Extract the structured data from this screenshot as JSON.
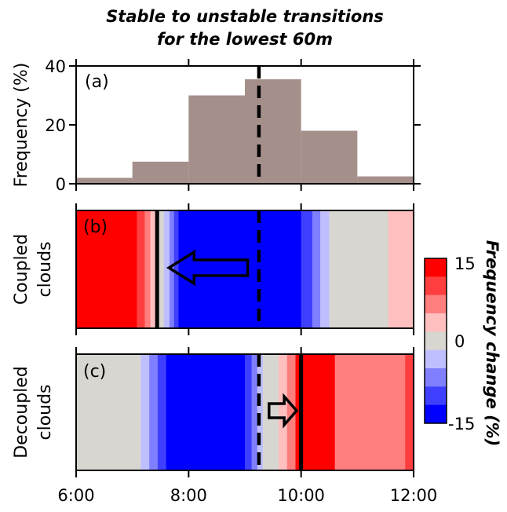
{
  "title_line1": "Stable to unstable transitions",
  "title_line2": "for the lowest 60m",
  "chart_data": [
    {
      "type": "bar",
      "panel": "(a)",
      "ylabel": "Frequency (%)",
      "ylim": [
        0,
        40
      ],
      "yticks": [
        "0",
        "20",
        "40"
      ],
      "bin_edges": [
        6.0,
        7.0,
        8.0,
        9.0,
        10.0,
        11.0,
        12.0
      ],
      "values": [
        2,
        7.5,
        30,
        35.5,
        18,
        2.5
      ],
      "bar_color": "#a48f8a",
      "dashed_line_x": 9.25
    },
    {
      "type": "heatmap",
      "panel": "(b)",
      "ylabel_line1": "Coupled",
      "ylabel_line2": "clouds",
      "segments": [
        {
          "x0": 6.0,
          "x1": 7.08,
          "v": 15
        },
        {
          "x0": 7.08,
          "x1": 7.22,
          "v": 12
        },
        {
          "x0": 7.22,
          "x1": 7.32,
          "v": 8
        },
        {
          "x0": 7.32,
          "x1": 7.43,
          "v": 4
        },
        {
          "x0": 7.43,
          "x1": 7.56,
          "v": 0
        },
        {
          "x0": 7.56,
          "x1": 7.66,
          "v": -4
        },
        {
          "x0": 7.66,
          "x1": 7.74,
          "v": -8
        },
        {
          "x0": 7.74,
          "x1": 7.82,
          "v": -12
        },
        {
          "x0": 7.82,
          "x1": 10.0,
          "v": -15
        },
        {
          "x0": 10.0,
          "x1": 10.2,
          "v": -12
        },
        {
          "x0": 10.2,
          "x1": 10.34,
          "v": -8
        },
        {
          "x0": 10.34,
          "x1": 10.5,
          "v": -4
        },
        {
          "x0": 10.5,
          "x1": 11.55,
          "v": 0
        },
        {
          "x0": 11.55,
          "x1": 12.0,
          "v": 4
        }
      ],
      "solid_line_x": 7.44,
      "dashed_line_x": 9.25,
      "arrow_direction": "left",
      "arrow_from_x": 9.05,
      "arrow_to_x": 7.65
    },
    {
      "type": "heatmap",
      "panel": "(c)",
      "ylabel_line1": "Decoupled",
      "ylabel_line2": "clouds",
      "segments": [
        {
          "x0": 6.0,
          "x1": 7.15,
          "v": 0
        },
        {
          "x0": 7.15,
          "x1": 7.3,
          "v": -4
        },
        {
          "x0": 7.3,
          "x1": 7.45,
          "v": -8
        },
        {
          "x0": 7.45,
          "x1": 7.6,
          "v": -12
        },
        {
          "x0": 7.6,
          "x1": 9.0,
          "v": -15
        },
        {
          "x0": 9.0,
          "x1": 9.12,
          "v": -12
        },
        {
          "x0": 9.12,
          "x1": 9.22,
          "v": -8
        },
        {
          "x0": 9.22,
          "x1": 9.32,
          "v": -4
        },
        {
          "x0": 9.32,
          "x1": 9.6,
          "v": 0
        },
        {
          "x0": 9.6,
          "x1": 9.75,
          "v": 4
        },
        {
          "x0": 9.75,
          "x1": 9.9,
          "v": 8
        },
        {
          "x0": 9.9,
          "x1": 10.6,
          "v": 15
        },
        {
          "x0": 10.6,
          "x1": 11.85,
          "v": 8
        },
        {
          "x0": 11.85,
          "x1": 12.0,
          "v": 12
        }
      ],
      "solid_line_x": 10.0,
      "dashed_line_x": 9.25,
      "arrow_direction": "right",
      "arrow_from_x": 9.43,
      "arrow_to_x": 9.92
    }
  ],
  "xaxis": {
    "xlim": [
      6,
      12
    ],
    "ticks": [
      6,
      8,
      10,
      12
    ],
    "tick_labels": [
      "6:00",
      "8:00",
      "10:00",
      "12:00"
    ]
  },
  "colorbar": {
    "label": "Frequency change (%)",
    "tick_labels": [
      "15",
      "0",
      "-15"
    ],
    "levels": [
      15,
      12,
      8,
      4,
      0,
      -4,
      -8,
      -12,
      -15
    ],
    "colors": [
      "#ff0000",
      "#ff3f3f",
      "#ff7f7f",
      "#ffbfbf",
      "#d8d6d0",
      "#bfbfff",
      "#7f7fff",
      "#3f3fff",
      "#0000ff"
    ]
  }
}
